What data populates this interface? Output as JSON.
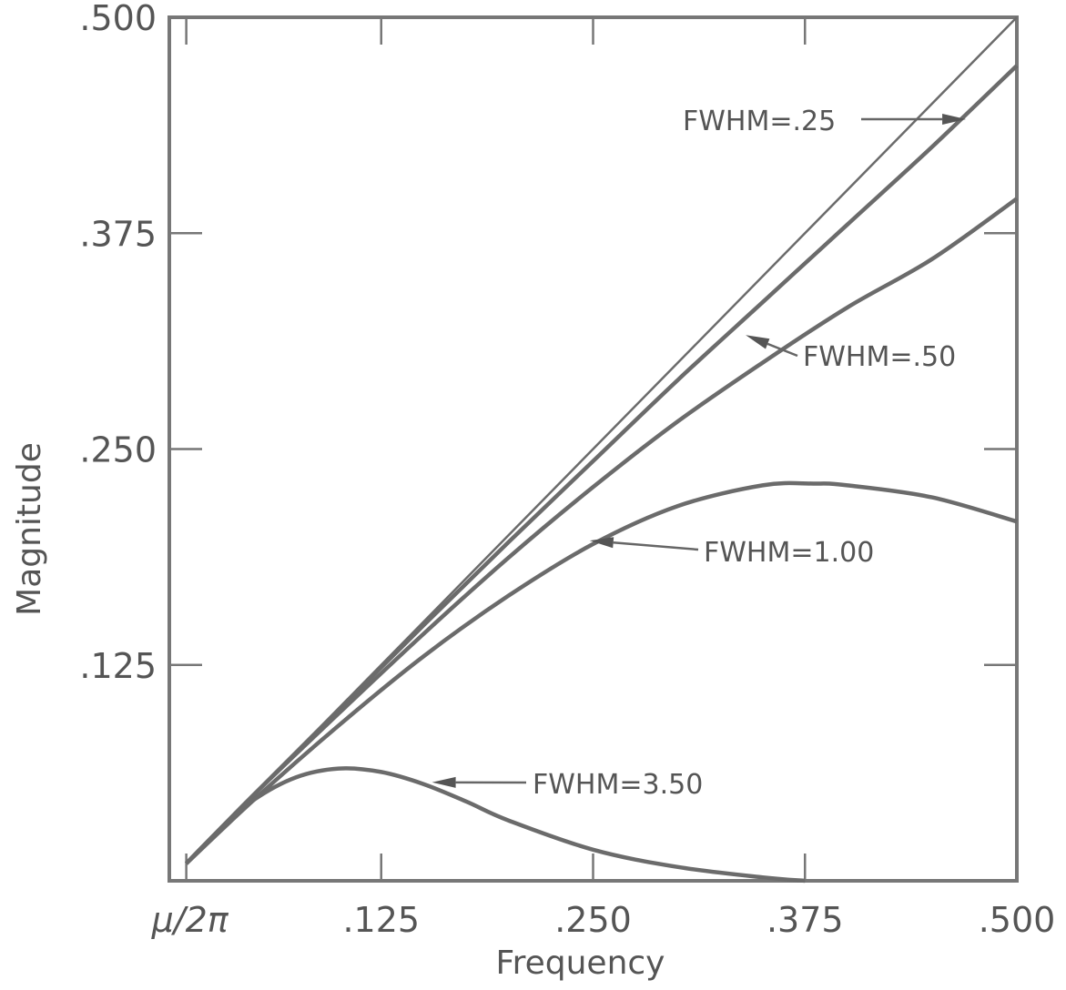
{
  "chart_data": {
    "type": "line",
    "xlabel": "Frequency",
    "ylabel": "Magnitude",
    "xlim": [
      0,
      0.5
    ],
    "ylim": [
      0,
      0.5
    ],
    "x_ticks": [
      {
        "value": 0.01,
        "label": "μ/2π"
      },
      {
        "value": 0.125,
        "label": ".125"
      },
      {
        "value": 0.25,
        "label": ".250"
      },
      {
        "value": 0.375,
        "label": ".375"
      },
      {
        "value": 0.5,
        "label": ".500"
      }
    ],
    "y_ticks": [
      {
        "value": 0.125,
        "label": ".125"
      },
      {
        "value": 0.25,
        "label": ".250"
      },
      {
        "value": 0.375,
        "label": ".375"
      },
      {
        "value": 0.5,
        "label": ".500"
      }
    ],
    "grid": false,
    "reference_line": {
      "x": [
        0.01,
        0.5
      ],
      "y": [
        0.01,
        0.5
      ]
    },
    "series": [
      {
        "name": "FWHM=.25",
        "x": [
          0.01,
          0.05,
          0.1,
          0.15,
          0.2,
          0.25,
          0.3,
          0.35,
          0.4,
          0.45,
          0.5
        ],
        "y": [
          0.01,
          0.05,
          0.099,
          0.148,
          0.196,
          0.243,
          0.29,
          0.335,
          0.38,
          0.425,
          0.472
        ]
      },
      {
        "name": "FWHM=.50",
        "x": [
          0.01,
          0.05,
          0.1,
          0.15,
          0.2,
          0.25,
          0.3,
          0.35,
          0.4,
          0.45,
          0.5
        ],
        "y": [
          0.01,
          0.05,
          0.097,
          0.143,
          0.187,
          0.228,
          0.266,
          0.3,
          0.332,
          0.36,
          0.395
        ]
      },
      {
        "name": "FWHM=1.00",
        "x": [
          0.01,
          0.05,
          0.1,
          0.15,
          0.2,
          0.25,
          0.3,
          0.35,
          0.38,
          0.4,
          0.45,
          0.5
        ],
        "y": [
          0.01,
          0.047,
          0.09,
          0.13,
          0.165,
          0.195,
          0.217,
          0.229,
          0.23,
          0.229,
          0.222,
          0.208
        ]
      },
      {
        "name": "FWHM=3.50",
        "x": [
          0.01,
          0.03,
          0.05,
          0.075,
          0.1,
          0.125,
          0.15,
          0.175,
          0.2,
          0.25,
          0.3,
          0.35,
          0.375
        ],
        "y": [
          0.01,
          0.03,
          0.047,
          0.06,
          0.065,
          0.063,
          0.056,
          0.046,
          0.035,
          0.018,
          0.008,
          0.002,
          0.0
        ]
      }
    ],
    "annotations": [
      {
        "text": "FWHM=.25",
        "series": 0,
        "point": {
          "x": 0.47,
          "y": 0.441
        }
      },
      {
        "text": "FWHM=.50",
        "series": 1,
        "point": {
          "x": 0.34,
          "y": 0.316
        }
      },
      {
        "text": "FWHM=1.00",
        "series": 2,
        "point": {
          "x": 0.248,
          "y": 0.197
        }
      },
      {
        "text": "FWHM=3.50",
        "series": 3,
        "point": {
          "x": 0.155,
          "y": 0.057
        }
      }
    ]
  }
}
